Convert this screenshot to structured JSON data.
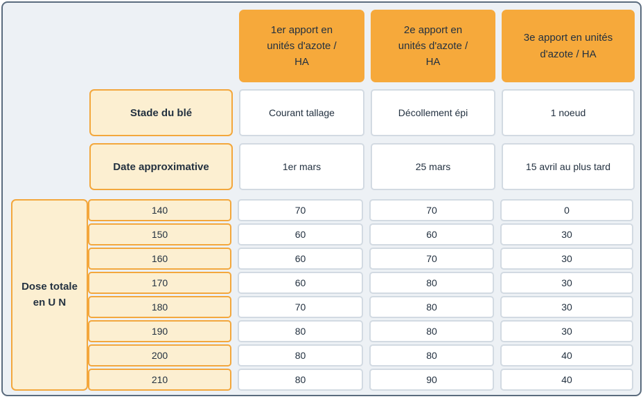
{
  "chart_data": {
    "type": "table",
    "title": "",
    "column_headers": [
      "1er apport en unités d'azote / HA",
      "2e apport en unités d'azote / HA",
      "3e apport en unités d'azote / HA"
    ],
    "info_rows": [
      {
        "label": "Stade du blé",
        "values": [
          "Courant tallage",
          "Décollement épi",
          "1 noeud"
        ]
      },
      {
        "label": "Date approximative",
        "values": [
          "1er mars",
          "25 mars",
          "15 avril au plus tard"
        ]
      }
    ],
    "dose_label": "Dose totale en U N",
    "dose_rows": [
      {
        "dose": "140",
        "values": [
          "70",
          "70",
          "0"
        ]
      },
      {
        "dose": "150",
        "values": [
          "60",
          "60",
          "30"
        ]
      },
      {
        "dose": "160",
        "values": [
          "60",
          "70",
          "30"
        ]
      },
      {
        "dose": "170",
        "values": [
          "60",
          "80",
          "30"
        ]
      },
      {
        "dose": "180",
        "values": [
          "70",
          "80",
          "30"
        ]
      },
      {
        "dose": "190",
        "values": [
          "80",
          "80",
          "30"
        ]
      },
      {
        "dose": "200",
        "values": [
          "80",
          "80",
          "40"
        ]
      },
      {
        "dose": "210",
        "values": [
          "80",
          "90",
          "40"
        ]
      }
    ]
  },
  "colors": {
    "header_orange": "#F6A93B",
    "label_fill": "#FCEFD1",
    "label_border": "#F3A73C",
    "value_cell_border": "#D2DAE2",
    "board_background": "#EDF1F5",
    "frame_border": "#5A6B7D",
    "text": "#233140"
  }
}
